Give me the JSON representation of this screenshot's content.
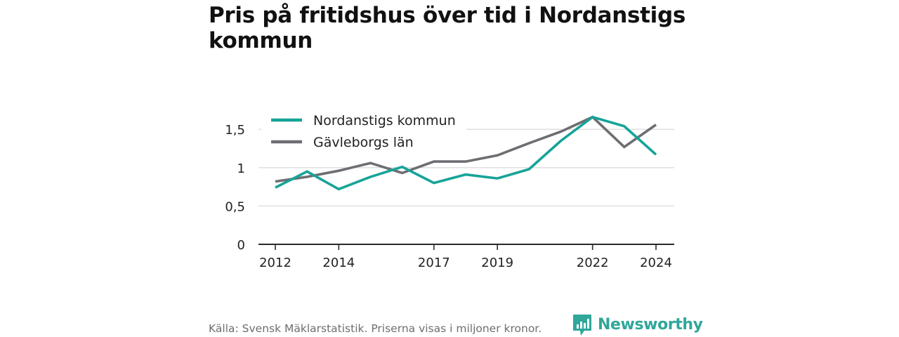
{
  "title": "Pris på fritidshus över tid i Nordanstigs kommun",
  "source": "Källa: Svensk Mäklarstatistik. Priserna visas i miljoner kronor.",
  "brand": {
    "name": "Newsworthy",
    "icon": "newsworthy-bar-chart-icon",
    "color": "#2fa79a"
  },
  "chart_data": {
    "type": "line",
    "x": [
      2012,
      2013,
      2014,
      2015,
      2016,
      2017,
      2018,
      2019,
      2020,
      2021,
      2022,
      2023,
      2024
    ],
    "x_ticks": [
      2012,
      2014,
      2017,
      2019,
      2022,
      2024
    ],
    "x_tick_labels": [
      "2012",
      "2014",
      "2017",
      "2019",
      "2022",
      "2024"
    ],
    "y_ticks": [
      0,
      0.5,
      1,
      1.5
    ],
    "y_tick_labels": [
      "0",
      "0,5",
      "1",
      "1,5"
    ],
    "ylim": [
      0,
      1.75
    ],
    "xlim": [
      2012,
      2024
    ],
    "grid": true,
    "legend_position": "top-left",
    "series": [
      {
        "name": "Nordanstigs kommun",
        "color": "#17a398",
        "values": [
          0.74,
          0.95,
          0.72,
          0.88,
          1.01,
          0.8,
          0.91,
          0.86,
          0.98,
          1.35,
          1.66,
          1.54,
          1.17
        ]
      },
      {
        "name": "Gävleborgs län",
        "color": "#6e6d72",
        "values": [
          0.82,
          0.88,
          0.96,
          1.06,
          0.93,
          1.08,
          1.08,
          1.16,
          1.32,
          1.47,
          1.66,
          1.27,
          1.56
        ]
      }
    ]
  }
}
